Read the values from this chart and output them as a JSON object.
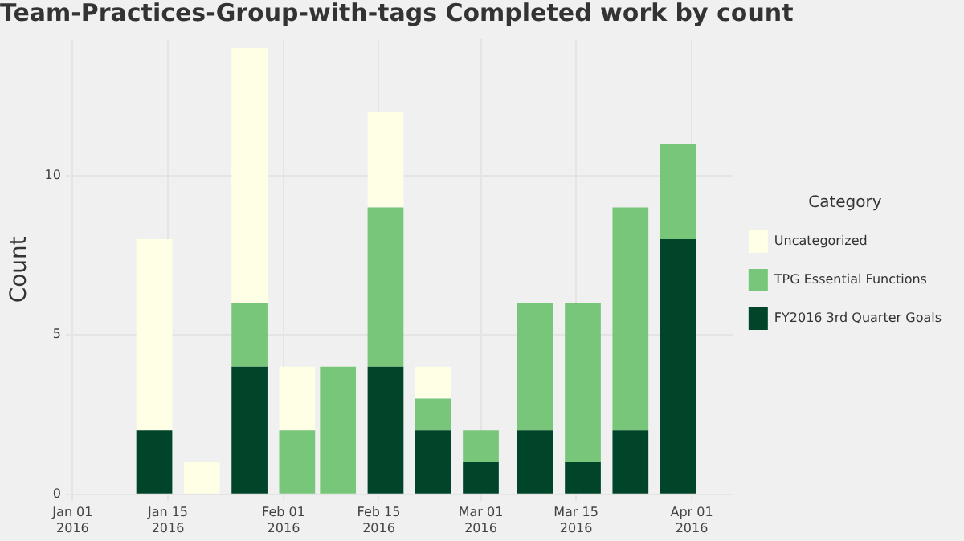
{
  "chart_data": {
    "type": "bar",
    "title": "Team-Practices-Group-with-tags Completed work by count",
    "ylabel": "Count",
    "legend_title": "Category",
    "stacked": true,
    "legend": "right",
    "grid": true,
    "x": [
      "2016-01-13",
      "2016-01-20",
      "2016-01-27",
      "2016-02-03",
      "2016-02-09",
      "2016-02-16",
      "2016-02-23",
      "2016-03-01",
      "2016-03-09",
      "2016-03-16",
      "2016-03-23",
      "2016-03-30"
    ],
    "xlim": [
      "2015-12-31",
      "2016-04-07"
    ],
    "xticks": [
      {
        "value": "2016-01-01",
        "label": "Jan 01 2016"
      },
      {
        "value": "2016-01-15",
        "label": "Jan 15 2016"
      },
      {
        "value": "2016-02-01",
        "label": "Feb 01 2016"
      },
      {
        "value": "2016-02-15",
        "label": "Feb 15 2016"
      },
      {
        "value": "2016-03-01",
        "label": "Mar 01 2016"
      },
      {
        "value": "2016-03-15",
        "label": "Mar 15 2016"
      },
      {
        "value": "2016-04-01",
        "label": "Apr 01 2016"
      }
    ],
    "ylim": [
      -0.2,
      14.3
    ],
    "yticks": [
      0,
      5,
      10
    ],
    "series": [
      {
        "name": "FY2016 3rd Quarter Goals",
        "color": "#004529",
        "values": [
          2,
          0,
          4,
          0,
          0,
          4,
          2,
          1,
          2,
          1,
          2,
          8
        ]
      },
      {
        "name": "TPG Essential Functions",
        "color": "#78c679",
        "values": [
          0,
          0,
          2,
          2,
          4,
          5,
          1,
          1,
          4,
          5,
          7,
          3
        ]
      },
      {
        "name": "Uncategorized",
        "color": "#ffffe5",
        "values": [
          6,
          1,
          8,
          2,
          0,
          3,
          1,
          0,
          0,
          0,
          0,
          0
        ]
      }
    ]
  }
}
